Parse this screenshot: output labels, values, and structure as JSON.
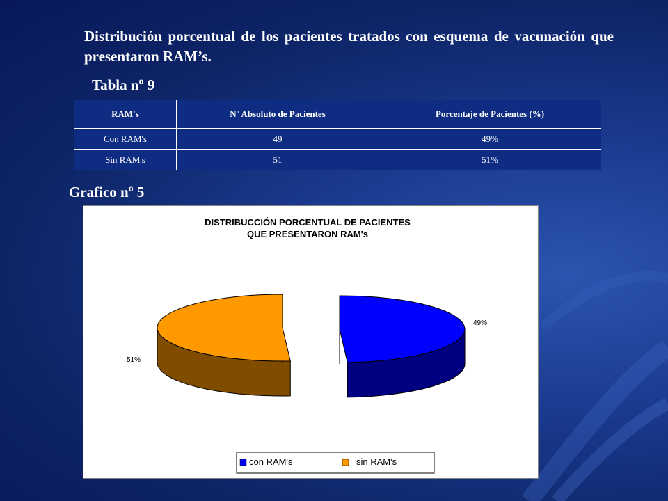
{
  "slide": {
    "title": "Distribución porcentual de los pacientes tratados con esquema de vacunación que presentaron RAM’s.",
    "table_caption": "Tabla nº 9",
    "chart_caption": "Grafico nº 5"
  },
  "table": {
    "headers": [
      "RAM's",
      "Nº Absoluto de Pacientes",
      "Porcentaje de Pacientes (%)"
    ],
    "rows": [
      [
        "Con RAM's",
        "49",
        "49%"
      ],
      [
        "Sin RAM's",
        "51",
        "51%"
      ]
    ]
  },
  "chart_data": {
    "type": "pie",
    "title_lines": [
      "DISTRIBUCCIÓN PORCENTUAL DE PACIENTES",
      "QUE PRESENTARON RAM's"
    ],
    "series": [
      {
        "name": "con RAM's",
        "value": 49,
        "label": "49%",
        "color": "#0000ff",
        "side_color": "#000080"
      },
      {
        "name": "sin RAM's",
        "value": 51,
        "label": "51%",
        "color": "#ff9900",
        "side_color": "#7f4c00"
      }
    ],
    "legend_position": "bottom",
    "style": "3d-exploded"
  },
  "colors": {
    "table_bg": "#0e2c82",
    "text": "#ffffff"
  }
}
